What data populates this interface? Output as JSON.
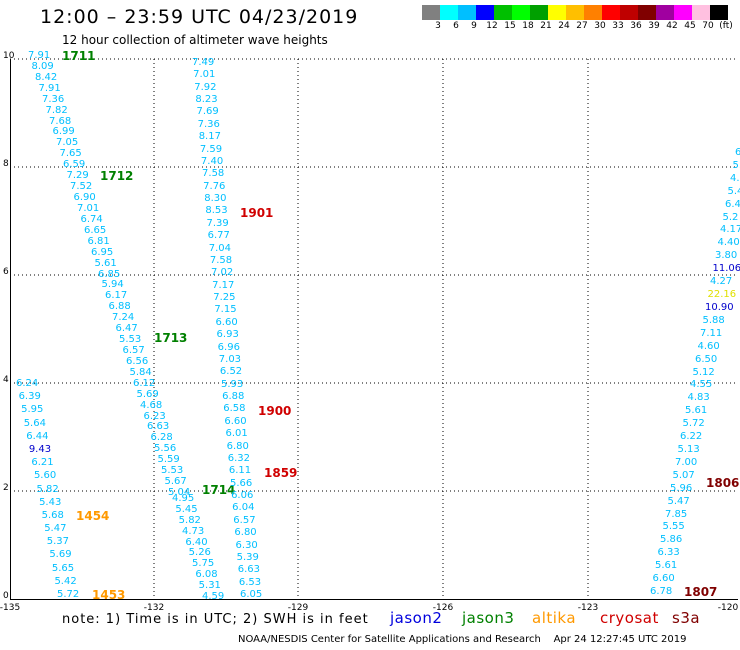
{
  "header": {
    "title": "12:00 – 23:59 UTC 04/23/2019",
    "subtitle": "12 hour collection of altimeter wave heights"
  },
  "colorbar": {
    "colors": [
      "#808080",
      "#00ffff",
      "#00bfff",
      "#0000ff",
      "#00bf00",
      "#00ff00",
      "#00a000",
      "#ffff00",
      "#ffbf00",
      "#ff8000",
      "#ff0000",
      "#bf0000",
      "#800000",
      "#a000a0",
      "#ff00ff",
      "#ffc0e0",
      "#000000"
    ],
    "labels": [
      "3",
      "6",
      "9",
      "12",
      "15",
      "18",
      "21",
      "24",
      "27",
      "30",
      "33",
      "36",
      "39",
      "42",
      "45",
      "70",
      "(ft)"
    ]
  },
  "axes": {
    "x_ticks": [
      "-135",
      "-132",
      "-129",
      "-126",
      "-123",
      "-120"
    ],
    "y_ticks": [
      "10",
      "8",
      "6",
      "4",
      "2",
      "0"
    ]
  },
  "tracks": [
    {
      "name": "track-1711",
      "label": "1711",
      "label_color": "#008000",
      "text_color": "#00bfff",
      "values": [
        "7.91",
        "8.09",
        "8.42",
        "7.91",
        "7.36",
        "7.82",
        "7.68",
        "6.99",
        "7.05",
        "7.65",
        "6.59",
        "7.29",
        "7.52",
        "6.90",
        "7.01",
        "6.74",
        "6.65",
        "6.81",
        "6.95",
        "5.61",
        "6.85",
        "5.94",
        "6.17",
        "6.88",
        "7.24",
        "6.47",
        "5.53",
        "6.57",
        "6.56",
        "5.84",
        "6.12",
        "5.69",
        "4.68",
        "6.23",
        "6.63",
        "6.28",
        "5.56",
        "5.59",
        "5.53",
        "5.67",
        "5.04"
      ]
    },
    {
      "name": "track-1712",
      "label": "1712",
      "label_color": "#008000",
      "text_color": "#00bfff",
      "values": []
    },
    {
      "name": "track-1713",
      "label": "1713",
      "label_color": "#008000",
      "text_color": "#00bfff",
      "values": []
    },
    {
      "name": "track-1714",
      "label": "1714",
      "label_color": "#008000",
      "text_color": "#00bfff",
      "values": []
    },
    {
      "name": "track-1901",
      "label": "1901",
      "label_color": "#d00000",
      "text_color": "#00bfff",
      "values": [
        "7.49",
        "7.01",
        "7.92",
        "8.23",
        "7.69",
        "7.36",
        "8.17",
        "7.59",
        "7.40",
        "7.58",
        "7.76",
        "8.30",
        "8.53",
        "7.39",
        "6.77",
        "7.04",
        "7.58",
        "7.02",
        "7.17",
        "7.25",
        "7.15",
        "6.60",
        "6.93",
        "6.96",
        "7.03",
        "6.52",
        "5.93",
        "6.88",
        "6.58",
        "6.60",
        "6.01",
        "6.80",
        "6.32",
        "6.11",
        "5.66",
        "6.06",
        "6.04",
        "6.57",
        "6.80",
        "6.30",
        "5.39",
        "6.63",
        "6.53",
        "6.05"
      ]
    },
    {
      "name": "track-1900",
      "label": "1900",
      "label_color": "#d00000",
      "text_color": "#00bfff",
      "values": []
    },
    {
      "name": "track-1859",
      "label": "1859",
      "label_color": "#d00000",
      "text_color": "#00bfff",
      "values": []
    },
    {
      "name": "track-1454",
      "label": "1454",
      "label_color": "#ff9900",
      "text_color": "#00bfff",
      "values": [
        "6.24",
        "6.39",
        "5.95",
        "5.64",
        "6.44",
        "9.43",
        "6.21",
        "5.60",
        "5.82",
        "5.43",
        "5.68",
        "5.47",
        "5.37",
        "5.69",
        "5.65",
        "5.42",
        "5.72"
      ]
    },
    {
      "name": "track-1453",
      "label": "1453",
      "label_color": "#ff9900",
      "text_color": "#00bfff",
      "values": []
    },
    {
      "name": "track-sub",
      "label": "",
      "label_color": "#00bfff",
      "text_color": "#00bfff",
      "values": [
        "4.95",
        "5.45",
        "5.82",
        "4.73",
        "6.40",
        "5.26",
        "5.75",
        "6.08",
        "5.31",
        "4.59"
      ]
    },
    {
      "name": "track-1806",
      "label": "1806",
      "label_color": "#800000",
      "text_color": "#00bfff",
      "values": [
        "6.",
        "5.",
        "4.",
        "5.4",
        "6.4",
        "5.2",
        "4.17",
        "4.40",
        "3.80",
        "11.06",
        "4.27",
        "22.16",
        "10.90",
        "5.88",
        "7.11",
        "4.60",
        "6.50",
        "5.12",
        "4.55",
        "4.83",
        "5.61",
        "5.72",
        "6.22",
        "5.13",
        "7.00",
        "5.07",
        "5.96",
        "5.47",
        "7.85",
        "5.55",
        "5.86",
        "6.33",
        "5.61",
        "6.60",
        "6.78"
      ]
    },
    {
      "name": "track-1807",
      "label": "1807",
      "label_color": "#800000",
      "text_color": "#00bfff",
      "values": []
    }
  ],
  "note": "note:  1) Time is in UTC;  2) SWH is in feet",
  "legend": [
    {
      "name": "jason2",
      "color": "#0000dd"
    },
    {
      "name": "jason3",
      "color": "#008000"
    },
    {
      "name": "altika",
      "color": "#ff9900"
    },
    {
      "name": "cryosat",
      "color": "#d00000"
    },
    {
      "name": "s3a",
      "color": "#800000"
    }
  ],
  "footer": "NOAA/NESDIS Center for Satellite Applications and Research    Apr 24 12:27:45 UTC 2019"
}
